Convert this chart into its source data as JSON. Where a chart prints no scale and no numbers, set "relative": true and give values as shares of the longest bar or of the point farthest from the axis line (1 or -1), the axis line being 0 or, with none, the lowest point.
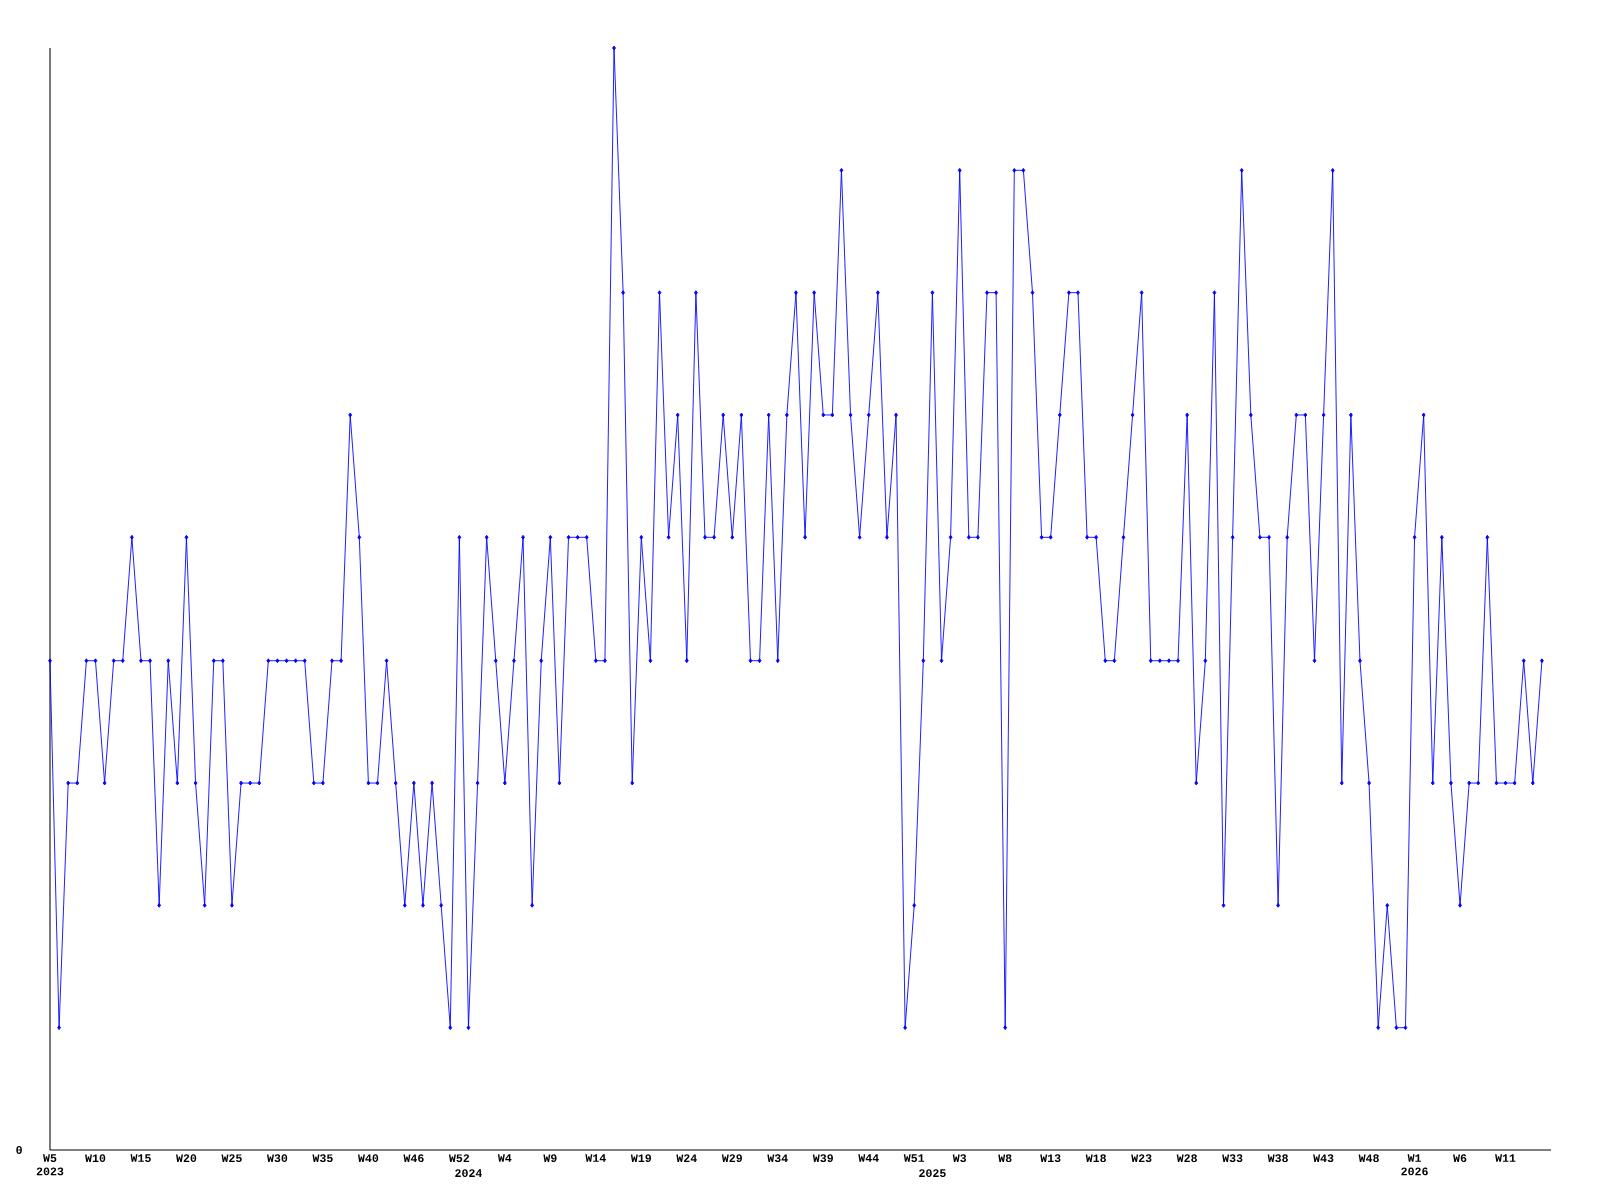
{
  "chart_data": {
    "type": "line",
    "relative": true,
    "color": "#0000ff",
    "marker": "diamond",
    "line_style": "solid",
    "annotations": [
      "0"
    ],
    "categories": [
      "W5 2023",
      null,
      null,
      null,
      null,
      "W10",
      null,
      null,
      null,
      null,
      "W15",
      null,
      null,
      null,
      null,
      "W20",
      null,
      null,
      null,
      null,
      "W25",
      null,
      null,
      null,
      null,
      "W30",
      null,
      null,
      null,
      null,
      "W35",
      null,
      null,
      null,
      null,
      "W40",
      null,
      null,
      null,
      null,
      "W46",
      null,
      null,
      null,
      null,
      "W52",
      "2024",
      null,
      null,
      null,
      "W4",
      null,
      null,
      null,
      null,
      "W9",
      null,
      null,
      null,
      null,
      "W14",
      null,
      null,
      null,
      null,
      "W19",
      null,
      null,
      null,
      null,
      "W24",
      null,
      null,
      null,
      null,
      "W29",
      null,
      null,
      null,
      null,
      "W34",
      null,
      null,
      null,
      null,
      "W39",
      null,
      null,
      null,
      null,
      "W44",
      null,
      null,
      null,
      null,
      "W51",
      null,
      "2025",
      null,
      null,
      "W3",
      null,
      null,
      null,
      null,
      "W8",
      null,
      null,
      null,
      null,
      "W13",
      null,
      null,
      null,
      null,
      "W18",
      null,
      null,
      null,
      null,
      "W23",
      null,
      null,
      null,
      null,
      "W28",
      null,
      null,
      null,
      null,
      "W33",
      null,
      null,
      null,
      null,
      "W38",
      null,
      null,
      null,
      null,
      "W43",
      null,
      null,
      null,
      null,
      "W48",
      null,
      null,
      null,
      null,
      "W1 2026",
      null,
      null,
      null,
      null,
      "W6",
      null,
      null,
      null,
      null,
      "W11",
      null,
      null,
      null,
      null
    ],
    "values": [
      0.444,
      0.111,
      0.333,
      0.333,
      0.444,
      0.444,
      0.333,
      0.444,
      0.444,
      0.556,
      0.444,
      0.444,
      0.222,
      0.444,
      0.333,
      0.556,
      0.333,
      0.222,
      0.444,
      0.444,
      0.222,
      0.333,
      0.333,
      0.333,
      0.444,
      0.444,
      0.444,
      0.444,
      0.444,
      0.333,
      0.333,
      0.444,
      0.444,
      0.667,
      0.556,
      0.333,
      0.333,
      0.444,
      0.333,
      0.222,
      0.333,
      0.222,
      0.333,
      0.222,
      0.111,
      0.556,
      0.111,
      0.333,
      0.556,
      0.444,
      0.333,
      0.444,
      0.556,
      0.222,
      0.444,
      0.556,
      0.333,
      0.556,
      0.556,
      0.556,
      0.444,
      0.444,
      1,
      0.778,
      0.333,
      0.556,
      0.444,
      0.778,
      0.556,
      0.667,
      0.444,
      0.778,
      0.556,
      0.556,
      0.667,
      0.556,
      0.667,
      0.444,
      0.444,
      0.667,
      0.444,
      0.667,
      0.778,
      0.556,
      0.778,
      0.667,
      0.667,
      0.889,
      0.667,
      0.556,
      0.667,
      0.778,
      0.556,
      0.667,
      0.111,
      0.222,
      0.444,
      0.778,
      0.444,
      0.556,
      0.889,
      0.556,
      0.556,
      0.778,
      0.778,
      0.111,
      0.889,
      0.889,
      0.778,
      0.556,
      0.556,
      0.667,
      0.778,
      0.778,
      0.556,
      0.556,
      0.444,
      0.444,
      0.556,
      0.667,
      0.778,
      0.444,
      0.444,
      0.444,
      0.444,
      0.667,
      0.333,
      0.444,
      0.778,
      0.222,
      0.556,
      0.889,
      0.667,
      0.556,
      0.556,
      0.222,
      0.556,
      0.667,
      0.667,
      0.444,
      0.667,
      0.889,
      0.333,
      0.667,
      0.444,
      0.333,
      0.111,
      0.222,
      0.111,
      0.111,
      0.556,
      0.667,
      0.333,
      0.556,
      0.333,
      0.222,
      0.333,
      0.333,
      0.556,
      0.333,
      0.333,
      0.333,
      0.444,
      0.333,
      0.444
    ]
  }
}
